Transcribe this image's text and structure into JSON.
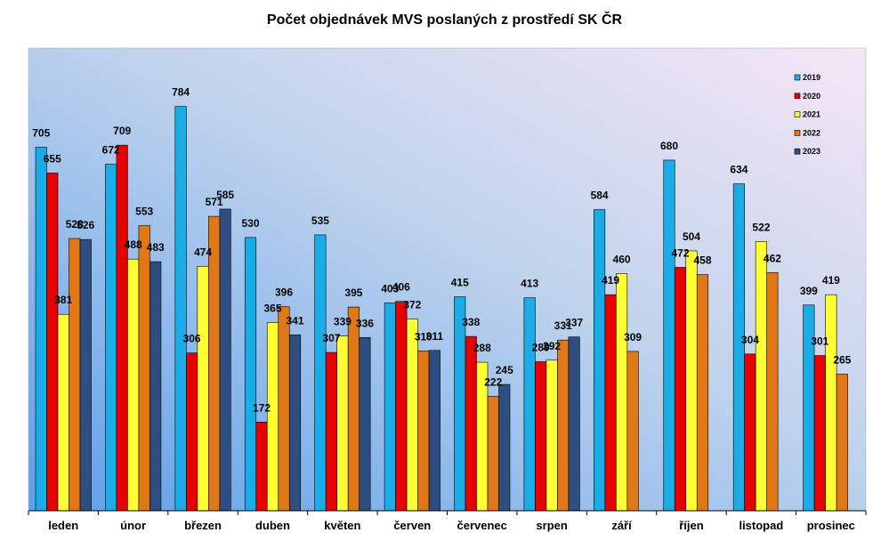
{
  "chart_data": {
    "type": "bar",
    "title": "Počet objednávek MVS poslaných z prostředí SK ČR",
    "categories": [
      "leden",
      "únor",
      "březen",
      "duben",
      "květen",
      "červen",
      "červenec",
      "srpen",
      "září",
      "říjen",
      "listopad",
      "prosinec"
    ],
    "series": [
      {
        "name": "2019",
        "color": "#1AACE6",
        "values": [
          705,
          672,
          784,
          530,
          535,
          403,
          415,
          413,
          584,
          680,
          634,
          399
        ]
      },
      {
        "name": "2020",
        "color": "#E60000",
        "values": [
          655,
          709,
          306,
          172,
          307,
          406,
          338,
          289,
          419,
          472,
          304,
          301
        ]
      },
      {
        "name": "2021",
        "color": "#FFFF33",
        "values": [
          381,
          488,
          474,
          365,
          339,
          372,
          288,
          292,
          460,
          504,
          522,
          419
        ]
      },
      {
        "name": "2022",
        "color": "#E07818",
        "values": [
          528,
          553,
          571,
          396,
          395,
          310,
          222,
          331,
          309,
          458,
          462,
          265
        ]
      },
      {
        "name": "2023",
        "color": "#2E4E82",
        "values": [
          526,
          483,
          585,
          341,
          336,
          311,
          245,
          337,
          null,
          null,
          null,
          null
        ]
      }
    ],
    "ylim": [
      0,
      800
    ],
    "legend_position": "top-right",
    "grid": false
  }
}
